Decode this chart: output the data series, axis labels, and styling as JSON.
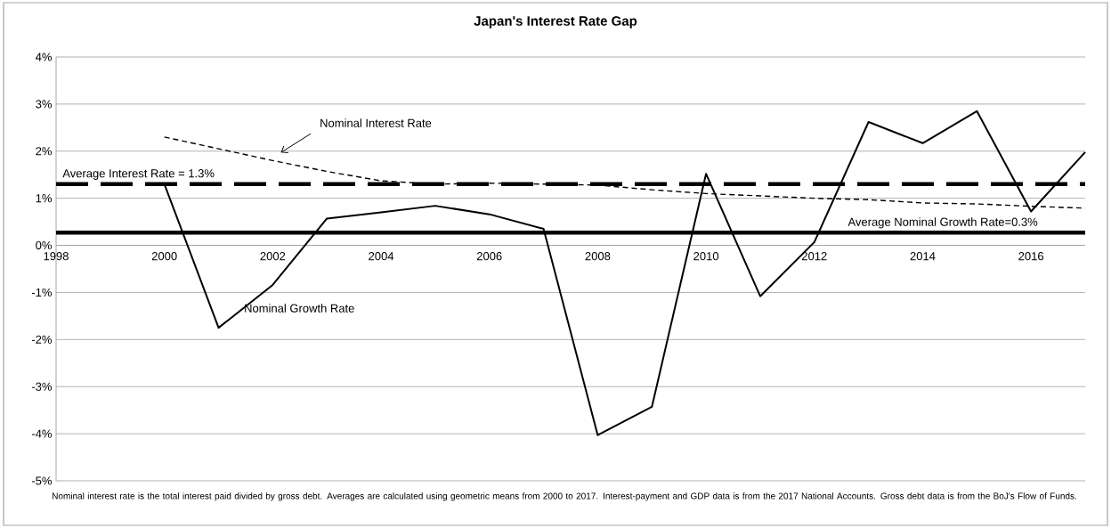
{
  "chart_data": {
    "type": "line",
    "title": "Japan's Interest Rate Gap",
    "x": [
      2000,
      2001,
      2002,
      2003,
      2004,
      2005,
      2006,
      2007,
      2008,
      2009,
      2010,
      2011,
      2012,
      2013,
      2014,
      2015,
      2016,
      2017
    ],
    "series": [
      {
        "name": "Nominal Interest Rate",
        "color": "#000000",
        "line_style": "dashed",
        "values": [
          2.3,
          2.05,
          1.8,
          1.57,
          1.37,
          1.3,
          1.32,
          1.3,
          1.28,
          1.18,
          1.1,
          1.05,
          1.0,
          0.97,
          0.9,
          0.88,
          0.83,
          0.79
        ]
      },
      {
        "name": "Nominal Growth Rate",
        "color": "#000000",
        "line_style": "solid",
        "values": [
          1.3,
          -1.75,
          -0.84,
          0.57,
          0.7,
          0.84,
          0.66,
          0.35,
          -4.03,
          -3.43,
          1.52,
          -1.08,
          0.07,
          2.62,
          2.17,
          2.85,
          0.72,
          1.98
        ]
      }
    ],
    "xlim": [
      1998,
      2017
    ],
    "xticks": [
      1998,
      2000,
      2002,
      2004,
      2006,
      2008,
      2010,
      2012,
      2014,
      2016
    ],
    "ylim": [
      -5,
      4
    ],
    "yticks": [
      {
        "value": -5,
        "label": "-5%"
      },
      {
        "value": -4,
        "label": "-4%"
      },
      {
        "value": -3,
        "label": "-3%"
      },
      {
        "value": -2,
        "label": "-2%"
      },
      {
        "value": -1,
        "label": "-1%"
      },
      {
        "value": 0,
        "label": "0%"
      },
      {
        "value": 1,
        "label": "1%"
      },
      {
        "value": 2,
        "label": "2%"
      },
      {
        "value": 3,
        "label": "3%"
      },
      {
        "value": 4,
        "label": "4%"
      }
    ],
    "ref_lines": [
      {
        "axis": "y",
        "value": 1.3,
        "label": "Average Interest Rate = 1.3%",
        "color": "#000000",
        "line_style": "dashed"
      },
      {
        "axis": "y",
        "value": 0.27,
        "label": "Average Nominal Growth Rate=0.3%",
        "color": "#000000",
        "line_style": "solid"
      }
    ],
    "grid": "y",
    "marker": "none",
    "annotations": [
      "Nominal interest rate is the total interest paid divided by gross debt. Averages are calculated using geometric means from 2000 to 2017. Interest-payment and GDP data is from the 2017 National Accounts. Gross debt data is from the BoJ's Flow of Funds."
    ]
  }
}
